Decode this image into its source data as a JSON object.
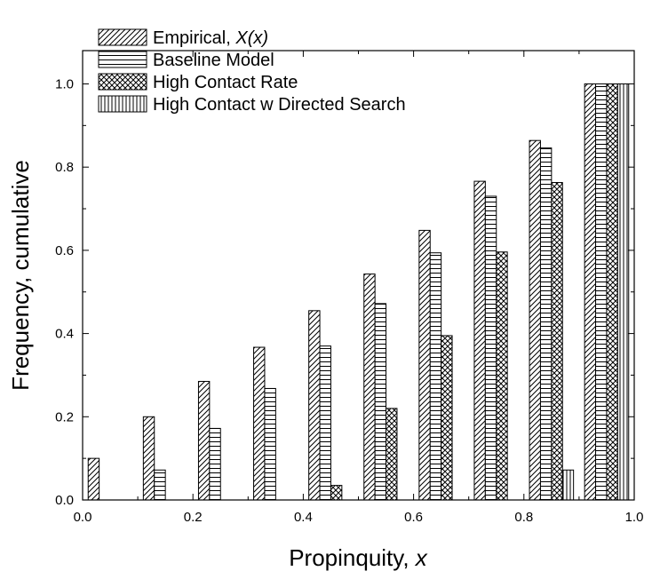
{
  "chart_data": {
    "type": "bar",
    "title": "",
    "xlabel_text": "Propinquity, ",
    "xlabel_var": "x",
    "ylabel": "Frequency, cumulative",
    "xlim": [
      0.0,
      1.0
    ],
    "ylim": [
      0.0,
      1.08
    ],
    "x_ticks": [
      "0.0",
      "0.2",
      "0.4",
      "0.6",
      "0.8",
      "1.0"
    ],
    "y_ticks": [
      "0.0",
      "0.2",
      "0.4",
      "0.6",
      "0.8",
      "1.0"
    ],
    "categories": [
      0.05,
      0.15,
      0.25,
      0.35,
      0.45,
      0.55,
      0.65,
      0.75,
      0.85,
      0.95
    ],
    "legend_position": "top-left",
    "series": [
      {
        "name": "Empirical, X(x)",
        "name_text": "Empirical, ",
        "name_italic": "X(x)",
        "pattern": "diagonal",
        "values": [
          0.1,
          0.2,
          0.285,
          0.367,
          0.455,
          0.543,
          0.648,
          0.766,
          0.864,
          1.0
        ]
      },
      {
        "name": "Baseline Model",
        "pattern": "horizontal",
        "values": [
          0.0,
          0.072,
          0.172,
          0.268,
          0.37,
          0.472,
          0.594,
          0.73,
          0.846,
          1.0
        ]
      },
      {
        "name": "High Contact Rate",
        "pattern": "crosshatch",
        "values": [
          0.0,
          0.0,
          0.0,
          0.0,
          0.035,
          0.22,
          0.395,
          0.596,
          0.763,
          1.0
        ]
      },
      {
        "name": "High Contact w Directed Search",
        "pattern": "vertical",
        "values": [
          0.0,
          0.0,
          0.0,
          0.0,
          0.0,
          0.0,
          0.0,
          0.0,
          0.072,
          1.0
        ]
      }
    ]
  }
}
